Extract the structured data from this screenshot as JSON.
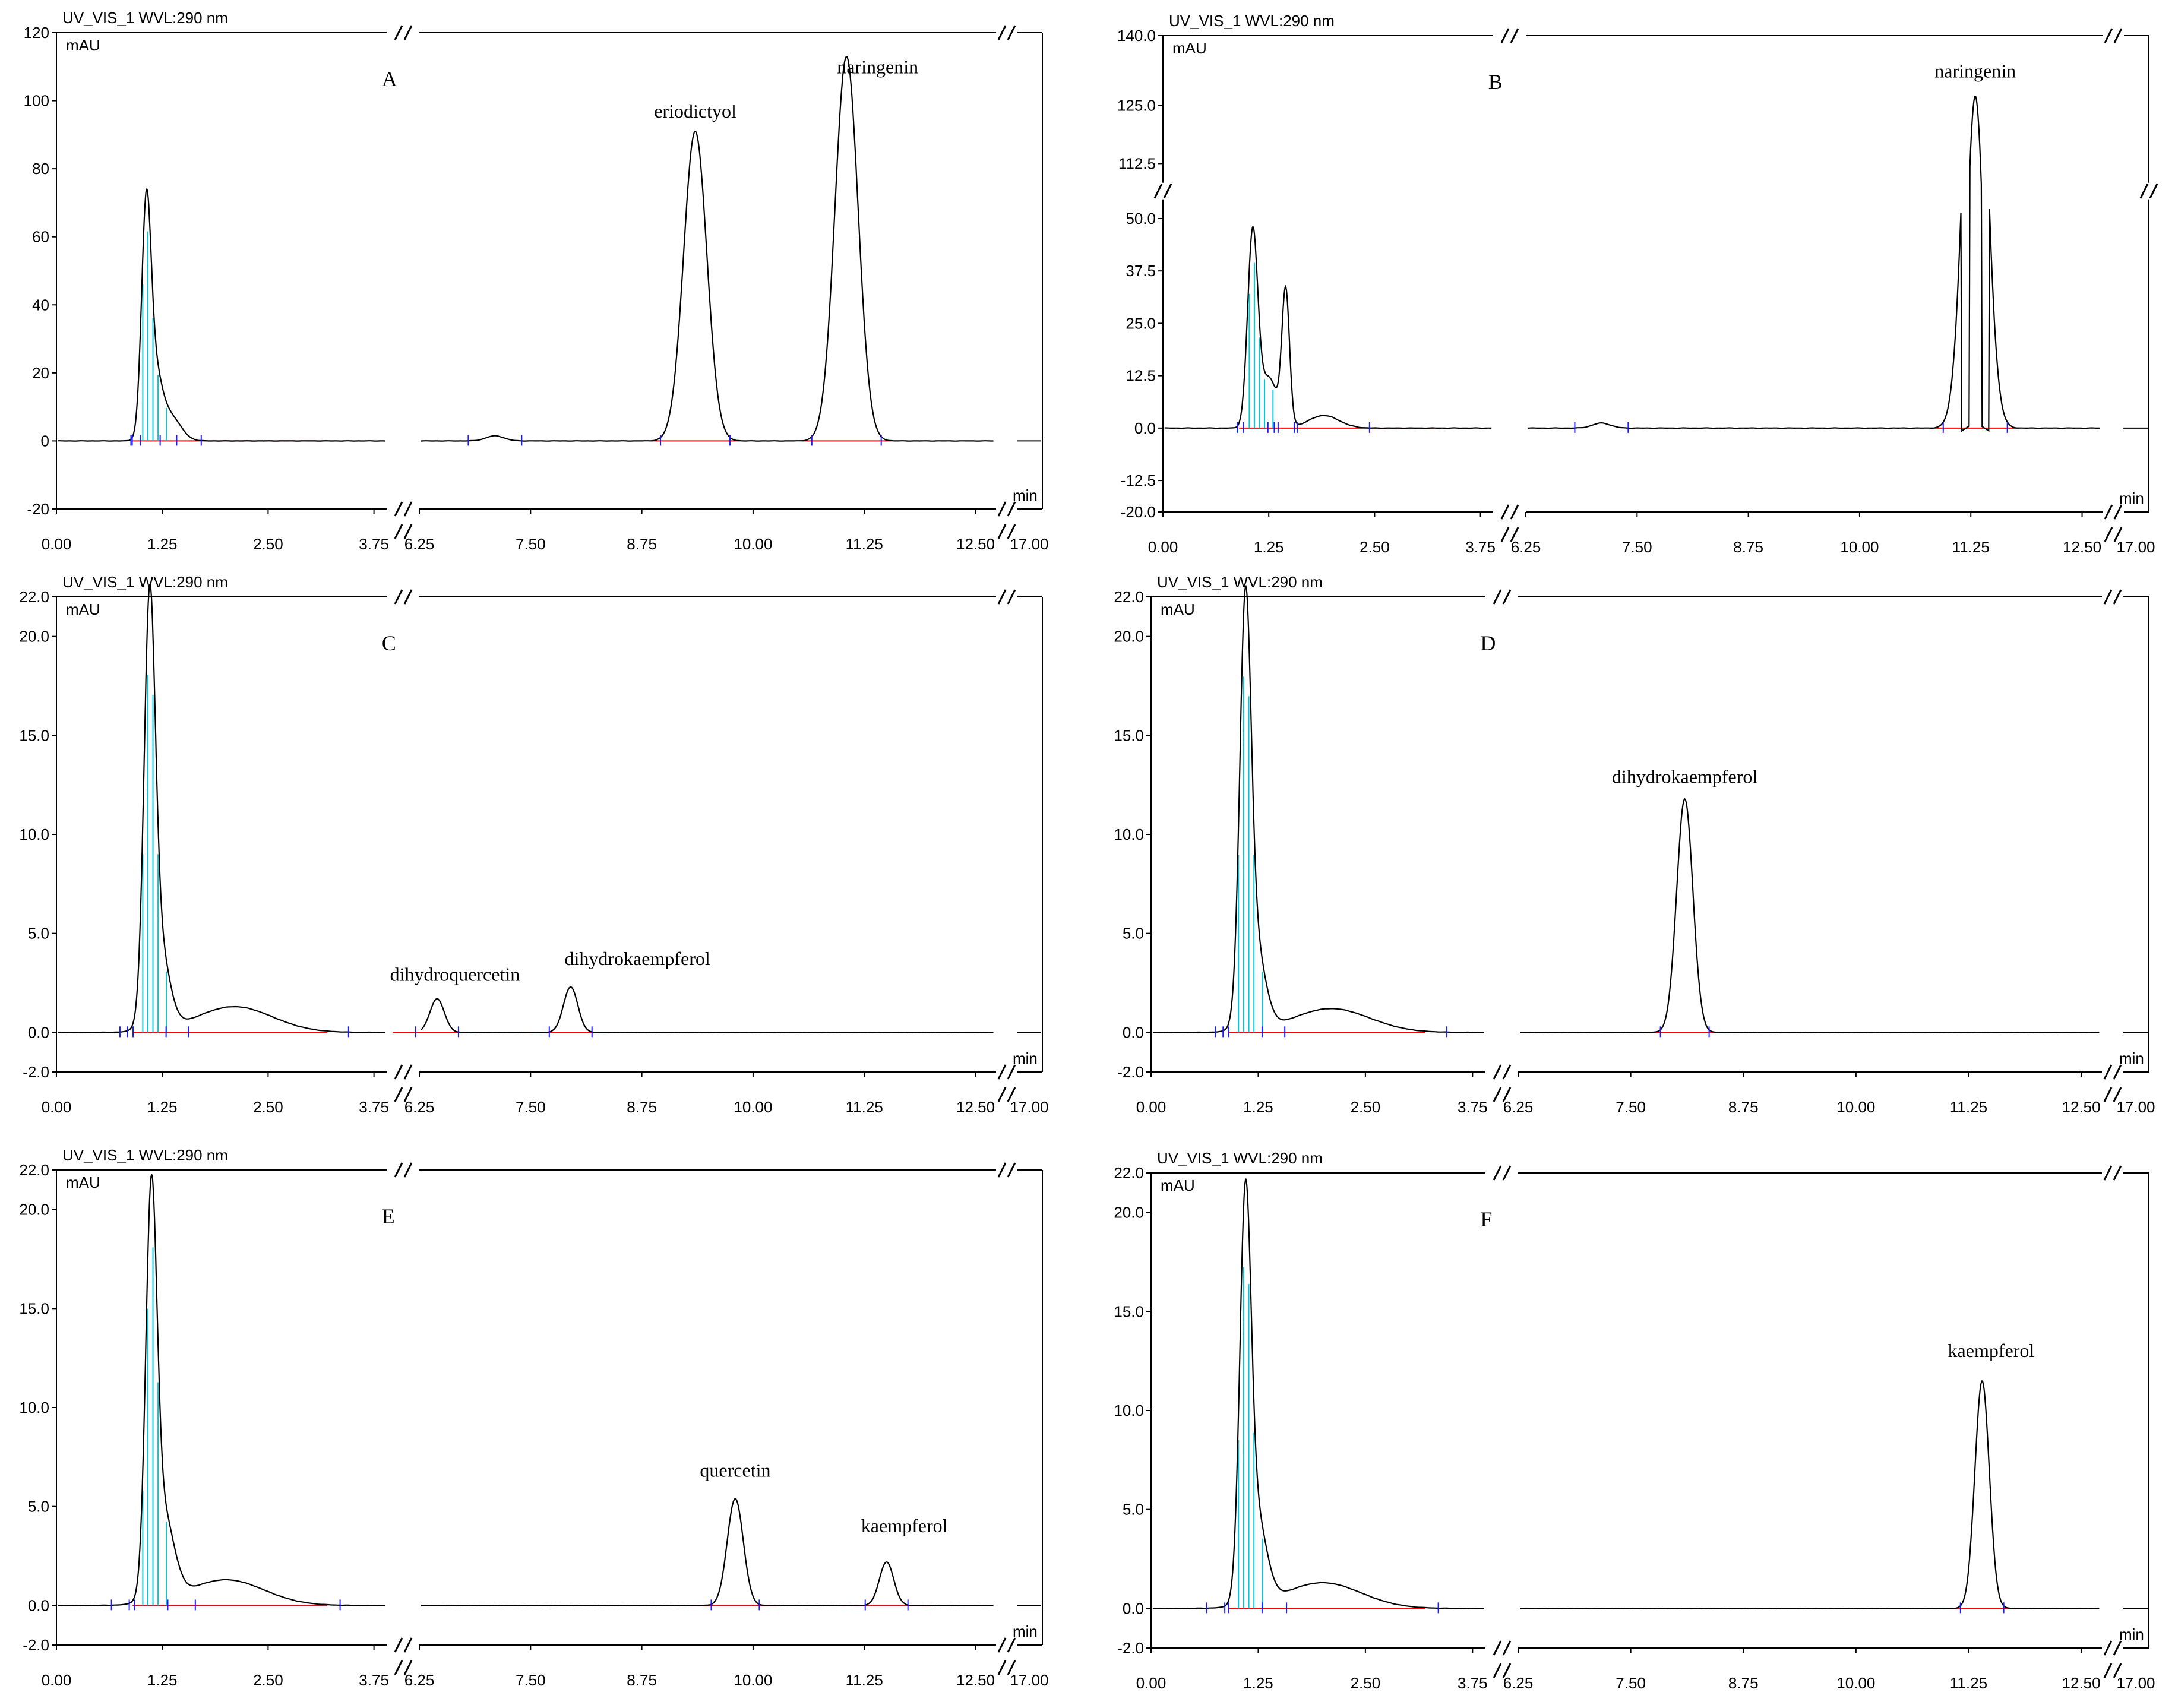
{
  "chart_data": [
    {
      "type": "line",
      "panel_label": "A",
      "header": "UV_VIS_1 WVL:290 nm",
      "ylabel": "mAU",
      "xlabel": "min",
      "ylim": [
        -20,
        120
      ],
      "y_ticks": [
        "-20",
        "0",
        "20",
        "40",
        "60",
        "80",
        "100",
        "120"
      ],
      "y_tick_values": [
        -20,
        0,
        20,
        40,
        60,
        80,
        100,
        120
      ],
      "x_seg1": [
        0,
        3.9
      ],
      "x_seg2": [
        6.25,
        12.75
      ],
      "x_ticks_seg1": [
        "0.00",
        "1.25",
        "2.50",
        "3.75"
      ],
      "x_ticks_seg2": [
        "6.25",
        "7.50",
        "8.75",
        "10.00",
        "11.25",
        "12.50"
      ],
      "x_end_tick": "17.00",
      "peaks": [
        {
          "x": 1.06,
          "y": 61,
          "w": 0.055
        },
        {
          "x": 1.15,
          "y": 20,
          "w": 0.09
        },
        {
          "x": 1.35,
          "y": 7,
          "w": 0.12
        },
        {
          "x": 7.1,
          "y": 1.5,
          "w": 0.1
        },
        {
          "x": 9.35,
          "y": 91,
          "w": 0.13,
          "name": "eriodictyol"
        },
        {
          "x": 11.05,
          "y": 113,
          "w": 0.13,
          "name": "naringenin"
        }
      ],
      "annotations": [
        {
          "text": "eriodictyol",
          "x": 9.35,
          "y": 95
        },
        {
          "text": "naringenin",
          "x": 11.4,
          "y": 108
        }
      ]
    },
    {
      "type": "line",
      "panel_label": "B",
      "header": "UV_VIS_1 WVL:290 nm",
      "ylabel": "mAU",
      "xlabel": "min",
      "ylim": [
        -20,
        140
      ],
      "y_ticks": [
        "-20.0",
        "-12.5",
        "0.0",
        "12.5",
        "25.0",
        "37.5",
        "50.0",
        "112.5",
        "125.0",
        "140.0"
      ],
      "y_break": [
        55,
        108
      ],
      "x_seg1": [
        0,
        3.9
      ],
      "x_seg2": [
        6.25,
        12.75
      ],
      "x_ticks_seg1": [
        "0.00",
        "1.25",
        "2.50",
        "3.75"
      ],
      "x_ticks_seg2": [
        "6.25",
        "7.50",
        "8.75",
        "10.00",
        "11.25",
        "12.50"
      ],
      "x_end_tick": "17.00",
      "peaks": [
        {
          "x": 1.06,
          "y": 46,
          "w": 0.06
        },
        {
          "x": 1.25,
          "y": 12,
          "w": 0.1
        },
        {
          "x": 1.45,
          "y": 32,
          "w": 0.045
        },
        {
          "x": 1.9,
          "y": 3,
          "w": 0.18
        },
        {
          "x": 7.1,
          "y": 1.2,
          "w": 0.1
        },
        {
          "x": 11.3,
          "y": 127,
          "w": 0.12,
          "name": "naringenin"
        }
      ],
      "annotations": [
        {
          "text": "naringenin",
          "x": 11.3,
          "y": 131
        }
      ]
    },
    {
      "type": "line",
      "panel_label": "C",
      "header": "UV_VIS_1 WVL:290 nm",
      "ylabel": "mAU",
      "xlabel": "min",
      "ylim": [
        -2,
        22
      ],
      "y_ticks": [
        "-2.0",
        "0.0",
        "5.0",
        "10.0",
        "15.0",
        "20.0",
        "22.0"
      ],
      "y_tick_values": [
        -2,
        0,
        5,
        10,
        15,
        20,
        22
      ],
      "x_seg1": [
        0,
        3.9
      ],
      "x_seg2": [
        6.25,
        12.75
      ],
      "x_ticks_seg1": [
        "0.00",
        "1.25",
        "2.50",
        "3.75"
      ],
      "x_ticks_seg2": [
        "6.25",
        "7.50",
        "8.75",
        "10.00",
        "11.25",
        "12.50"
      ],
      "x_end_tick": "17.00",
      "peaks": [
        {
          "x": 1.1,
          "y": 19.3,
          "w": 0.065
        },
        {
          "x": 1.2,
          "y": 4.5,
          "w": 0.12
        },
        {
          "x": 2.1,
          "y": 1.3,
          "w": 0.45
        },
        {
          "x": 6.45,
          "y": 1.7,
          "w": 0.08,
          "name": "dihydroquercetin"
        },
        {
          "x": 7.95,
          "y": 2.3,
          "w": 0.08,
          "name": "dihydrokaempferol"
        }
      ],
      "annotations": [
        {
          "text": "dihydroquercetin",
          "x": 6.65,
          "y": 2.6
        },
        {
          "text": "dihydrokaempferol",
          "x": 8.7,
          "y": 3.4
        }
      ]
    },
    {
      "type": "line",
      "panel_label": "D",
      "header": "UV_VIS_1 WVL:290 nm",
      "ylabel": "mAU",
      "xlabel": "min",
      "ylim": [
        -2,
        22
      ],
      "y_ticks": [
        "-2.0",
        "0.0",
        "5.0",
        "10.0",
        "15.0",
        "20.0",
        "22.0"
      ],
      "y_tick_values": [
        -2,
        0,
        5,
        10,
        15,
        20,
        22
      ],
      "x_seg1": [
        0,
        3.9
      ],
      "x_seg2": [
        6.25,
        12.75
      ],
      "x_ticks_seg1": [
        "0.00",
        "1.25",
        "2.50",
        "3.75"
      ],
      "x_ticks_seg2": [
        "6.25",
        "7.50",
        "8.75",
        "10.00",
        "11.25",
        "12.50"
      ],
      "x_end_tick": "17.00",
      "peaks": [
        {
          "x": 1.1,
          "y": 19.2,
          "w": 0.065
        },
        {
          "x": 1.2,
          "y": 4.5,
          "w": 0.12
        },
        {
          "x": 2.1,
          "y": 1.2,
          "w": 0.45
        },
        {
          "x": 8.1,
          "y": 11.8,
          "w": 0.09,
          "name": "dihydrokaempferol"
        }
      ],
      "annotations": [
        {
          "text": "dihydrokaempferol",
          "x": 8.1,
          "y": 12.6
        }
      ]
    },
    {
      "type": "line",
      "panel_label": "E",
      "header": "UV_VIS_1 WVL:290 nm",
      "ylabel": "mAU",
      "xlabel": "min",
      "ylim": [
        -2,
        22
      ],
      "y_ticks": [
        "-2.0",
        "0.0",
        "5.0",
        "10.0",
        "15.0",
        "20.0",
        "22.0"
      ],
      "y_tick_values": [
        -2,
        0,
        5,
        10,
        15,
        20,
        22
      ],
      "x_seg1": [
        0,
        3.9
      ],
      "x_seg2": [
        6.25,
        12.75
      ],
      "x_ticks_seg1": [
        "0.00",
        "1.25",
        "2.50",
        "3.75"
      ],
      "x_ticks_seg2": [
        "6.25",
        "7.50",
        "8.75",
        "10.00",
        "11.25",
        "12.50"
      ],
      "x_end_tick": "17.00",
      "peaks": [
        {
          "x": 1.12,
          "y": 18.8,
          "w": 0.065
        },
        {
          "x": 1.25,
          "y": 4.5,
          "w": 0.13
        },
        {
          "x": 2.0,
          "y": 1.3,
          "w": 0.45
        },
        {
          "x": 9.8,
          "y": 5.4,
          "w": 0.09,
          "name": "quercetin"
        },
        {
          "x": 11.5,
          "y": 2.2,
          "w": 0.08,
          "name": "kaempferol"
        }
      ],
      "annotations": [
        {
          "text": "quercetin",
          "x": 9.8,
          "y": 6.5
        },
        {
          "text": "kaempferol",
          "x": 11.7,
          "y": 3.7
        }
      ]
    },
    {
      "type": "line",
      "panel_label": "F",
      "header": "UV_VIS_1 WVL:290 nm",
      "ylabel": "mAU",
      "xlabel": "min",
      "ylim": [
        -2,
        22
      ],
      "y_ticks": [
        "-2.0",
        "0.0",
        "5.0",
        "10.0",
        "15.0",
        "20.0",
        "22.0"
      ],
      "y_tick_values": [
        -2,
        0,
        5,
        10,
        15,
        20,
        22
      ],
      "x_seg1": [
        0,
        3.9
      ],
      "x_seg2": [
        6.25,
        12.75
      ],
      "x_ticks_seg1": [
        "0.00",
        "1.25",
        "2.50",
        "3.75"
      ],
      "x_ticks_seg2": [
        "6.25",
        "7.50",
        "8.75",
        "10.00",
        "11.25",
        "12.50"
      ],
      "x_end_tick": "17.00",
      "peaks": [
        {
          "x": 1.1,
          "y": 18.7,
          "w": 0.065
        },
        {
          "x": 1.22,
          "y": 4.5,
          "w": 0.12
        },
        {
          "x": 2.0,
          "y": 1.3,
          "w": 0.45
        },
        {
          "x": 11.4,
          "y": 11.5,
          "w": 0.08,
          "name": "kaempferol"
        }
      ],
      "annotations": [
        {
          "text": "kaempferol",
          "x": 11.5,
          "y": 12.7
        }
      ]
    }
  ],
  "colors": {
    "trace": "#000000",
    "baseline": "#ff0000",
    "integration": "#00c8d8",
    "marker": "#1a1aff",
    "tail": "#cc00cc",
    "frame": "#000000"
  }
}
